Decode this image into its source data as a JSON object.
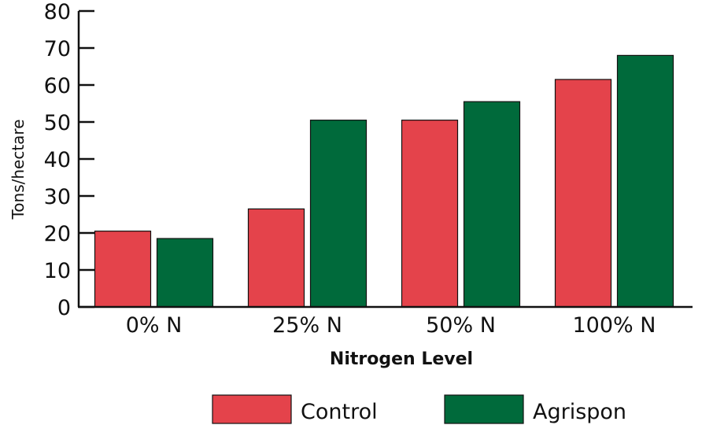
{
  "chart_data": {
    "type": "bar",
    "categories": [
      "0% N",
      "25% N",
      "50% N",
      "100% N"
    ],
    "series": [
      {
        "name": "Control",
        "values": [
          20.5,
          26.5,
          50.5,
          61.5
        ],
        "color": "#e4434b"
      },
      {
        "name": "Agrispon",
        "values": [
          18.5,
          50.5,
          55.5,
          68
        ],
        "color": "#006a3b"
      }
    ],
    "xlabel": "Nitrogen Level",
    "ylabel": "Tons/hectare",
    "ylim": [
      0,
      80
    ],
    "yticks": [
      "0",
      "10",
      "20",
      "30",
      "40",
      "50",
      "60",
      "70",
      "80"
    ],
    "grid": false,
    "legend": "bottom"
  }
}
